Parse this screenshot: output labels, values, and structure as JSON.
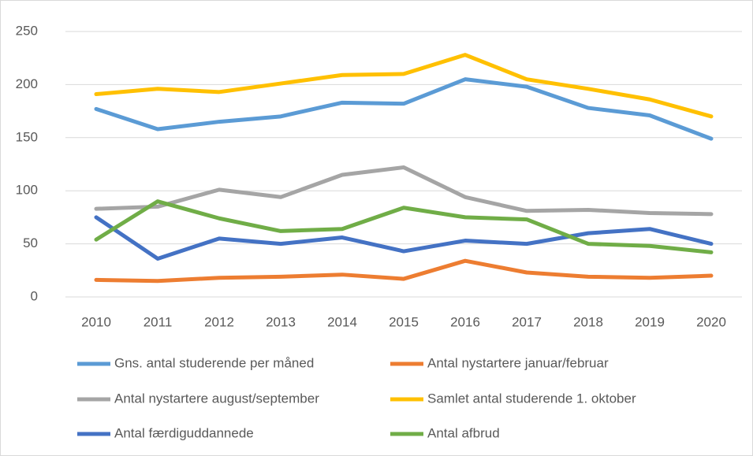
{
  "chart_data": {
    "type": "line",
    "categories": [
      "2010",
      "2011",
      "2012",
      "2013",
      "2014",
      "2015",
      "2016",
      "2017",
      "2018",
      "2019",
      "2020"
    ],
    "series": [
      {
        "name": "Gns. antal studerende per måned",
        "color": "#5b9bd5",
        "values": [
          177,
          158,
          165,
          170,
          183,
          182,
          205,
          198,
          178,
          171,
          149
        ]
      },
      {
        "name": "Antal nystartere januar/februar",
        "color": "#ed7d31",
        "values": [
          16,
          15,
          18,
          19,
          21,
          17,
          34,
          23,
          19,
          18,
          20
        ]
      },
      {
        "name": "Antal nystartere august/september",
        "color": "#a5a5a5",
        "values": [
          83,
          85,
          101,
          94,
          115,
          122,
          94,
          81,
          82,
          79,
          78
        ]
      },
      {
        "name": "Samlet antal studerende 1. oktober",
        "color": "#ffc000",
        "values": [
          191,
          196,
          193,
          201,
          209,
          210,
          228,
          205,
          196,
          186,
          170
        ]
      },
      {
        "name": "Antal færdiguddannede",
        "color": "#4472c4",
        "values": [
          75,
          36,
          55,
          50,
          56,
          43,
          53,
          50,
          60,
          64,
          50
        ]
      },
      {
        "name": "Antal afbrud",
        "color": "#70ad47",
        "values": [
          54,
          90,
          74,
          62,
          64,
          84,
          75,
          73,
          50,
          48,
          42
        ]
      }
    ],
    "ylim": [
      0,
      250
    ],
    "yticks": [
      0,
      50,
      100,
      150,
      200,
      250
    ],
    "grid": true,
    "legend": "bottom"
  }
}
